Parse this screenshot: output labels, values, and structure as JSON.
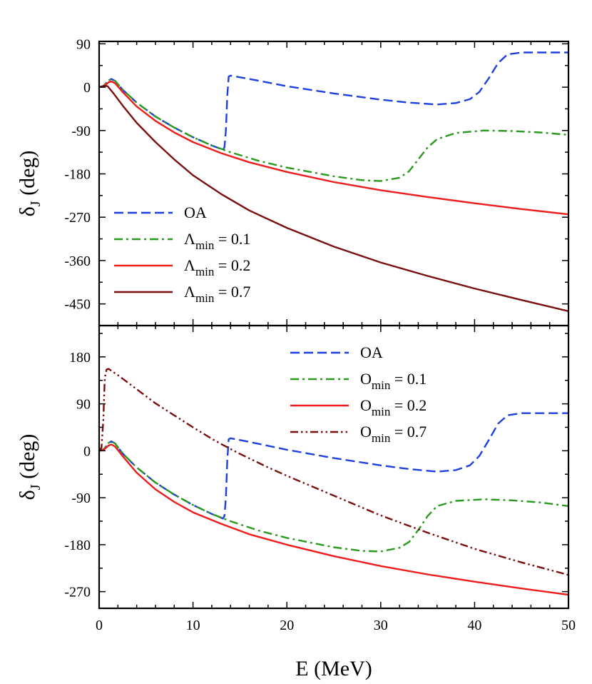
{
  "chart_data": [
    {
      "type": "line",
      "panel": "top",
      "xlabel": "E (MeV)",
      "ylabel": {
        "main": "δ",
        "sub": "J",
        "suffix": " (deg)"
      },
      "xlim": [
        0,
        50
      ],
      "ylim": [
        -495,
        95
      ],
      "yticks": [
        90,
        0,
        -90,
        -180,
        -270,
        -360,
        -450
      ],
      "legend_position": "bottom-left",
      "series": [
        {
          "name": "OA",
          "label_main": "OA",
          "label_sub": "",
          "label_value": "",
          "color": "#1f3fe0",
          "dash": "dashed",
          "points": [
            [
              0,
              0
            ],
            [
              0.5,
              3
            ],
            [
              1,
              14
            ],
            [
              1.3,
              17
            ],
            [
              1.7,
              13
            ],
            [
              2.5,
              -5
            ],
            [
              4,
              -32
            ],
            [
              6,
              -61
            ],
            [
              8,
              -84
            ],
            [
              10,
              -104
            ],
            [
              12,
              -121
            ],
            [
              13.2,
              -130
            ],
            [
              13.35,
              -125
            ],
            [
              13.5,
              -90
            ],
            [
              13.65,
              -20
            ],
            [
              13.8,
              22
            ],
            [
              14,
              24
            ],
            [
              16,
              17
            ],
            [
              20,
              2
            ],
            [
              25,
              -13
            ],
            [
              30,
              -26
            ],
            [
              33,
              -32
            ],
            [
              36,
              -36
            ],
            [
              38,
              -33
            ],
            [
              39.5,
              -25
            ],
            [
              40.5,
              -10
            ],
            [
              41.5,
              18
            ],
            [
              42.5,
              50
            ],
            [
              43.5,
              68
            ],
            [
              45,
              72
            ],
            [
              50,
              72
            ]
          ]
        },
        {
          "name": "Λmin = 0.1",
          "label_main": "Λ",
          "label_sub": "min",
          "label_value": " = 0.1",
          "color": "#2a9a1e",
          "dash": "dashdot",
          "points": [
            [
              0,
              0
            ],
            [
              0.5,
              3
            ],
            [
              1,
              14
            ],
            [
              1.3,
              17
            ],
            [
              1.7,
              13
            ],
            [
              2.5,
              -5
            ],
            [
              4,
              -32
            ],
            [
              6,
              -61
            ],
            [
              8,
              -84
            ],
            [
              10,
              -104
            ],
            [
              12,
              -121
            ],
            [
              14,
              -135
            ],
            [
              17,
              -153
            ],
            [
              20,
              -167
            ],
            [
              25,
              -185
            ],
            [
              28,
              -193
            ],
            [
              30,
              -195
            ],
            [
              32,
              -188
            ],
            [
              33,
              -175
            ],
            [
              34,
              -150
            ],
            [
              35,
              -125
            ],
            [
              36,
              -108
            ],
            [
              38,
              -95
            ],
            [
              41,
              -90
            ],
            [
              44,
              -91
            ],
            [
              47,
              -94
            ],
            [
              50,
              -99
            ]
          ]
        },
        {
          "name": "Λmin = 0.2",
          "label_main": "Λ",
          "label_sub": "min",
          "label_value": " = 0.2",
          "color": "#ee1c1c",
          "dash": "solid",
          "points": [
            [
              0,
              0
            ],
            [
              0.5,
              2
            ],
            [
              1,
              10
            ],
            [
              1.3,
              12
            ],
            [
              1.7,
              8
            ],
            [
              2.5,
              -10
            ],
            [
              4,
              -40
            ],
            [
              6,
              -70
            ],
            [
              8,
              -94
            ],
            [
              10,
              -114
            ],
            [
              13,
              -137
            ],
            [
              16,
              -156
            ],
            [
              20,
              -176
            ],
            [
              25,
              -197
            ],
            [
              30,
              -214
            ],
            [
              35,
              -228
            ],
            [
              40,
              -241
            ],
            [
              45,
              -253
            ],
            [
              50,
              -264
            ]
          ]
        },
        {
          "name": "Λmin = 0.7",
          "label_main": "Λ",
          "label_sub": "min",
          "label_value": " = 0.7",
          "color": "#7a0f0f",
          "dash": "solid",
          "points": [
            [
              0,
              0
            ],
            [
              0.5,
              3
            ],
            [
              0.9,
              2
            ],
            [
              1.5,
              -12
            ],
            [
              2.5,
              -38
            ],
            [
              4,
              -74
            ],
            [
              6,
              -114
            ],
            [
              8,
              -150
            ],
            [
              10,
              -183
            ],
            [
              13,
              -222
            ],
            [
              16,
              -256
            ],
            [
              20,
              -292
            ],
            [
              25,
              -331
            ],
            [
              30,
              -364
            ],
            [
              35,
              -392
            ],
            [
              40,
              -418
            ],
            [
              45,
              -442
            ],
            [
              50,
              -465
            ]
          ]
        }
      ]
    },
    {
      "type": "line",
      "panel": "bottom",
      "xlabel": "E (MeV)",
      "ylabel": {
        "main": "δ",
        "sub": "J",
        "suffix": " (deg)"
      },
      "xlim": [
        0,
        50
      ],
      "xticks": [
        0,
        10,
        20,
        30,
        40,
        50
      ],
      "ylim": [
        -302,
        240
      ],
      "yticks": [
        180,
        90,
        0,
        -90,
        -180,
        -270
      ],
      "legend_position": "top-right",
      "series": [
        {
          "name": "OA",
          "label_main": "OA",
          "label_sub": "",
          "label_value": "",
          "color": "#1f3fe0",
          "dash": "dashed",
          "points": [
            [
              0,
              0
            ],
            [
              0.5,
              3
            ],
            [
              1,
              15
            ],
            [
              1.3,
              18
            ],
            [
              1.7,
              14
            ],
            [
              2.5,
              -5
            ],
            [
              4,
              -32
            ],
            [
              6,
              -61
            ],
            [
              8,
              -84
            ],
            [
              10,
              -104
            ],
            [
              12,
              -121
            ],
            [
              13.2,
              -130
            ],
            [
              13.35,
              -125
            ],
            [
              13.5,
              -90
            ],
            [
              13.65,
              -20
            ],
            [
              13.8,
              22
            ],
            [
              14,
              24
            ],
            [
              16,
              17
            ],
            [
              20,
              2
            ],
            [
              25,
              -14
            ],
            [
              30,
              -28
            ],
            [
              33,
              -35
            ],
            [
              36,
              -40
            ],
            [
              38,
              -37
            ],
            [
              39.5,
              -28
            ],
            [
              40.5,
              -10
            ],
            [
              41.5,
              20
            ],
            [
              42.5,
              52
            ],
            [
              43.5,
              68
            ],
            [
              45,
              72
            ],
            [
              50,
              72
            ]
          ]
        },
        {
          "name": "Omin = 0.1",
          "label_main": "O",
          "label_sub": "min",
          "label_value": " = 0.1",
          "color": "#2a9a1e",
          "dash": "dashdot",
          "points": [
            [
              0,
              0
            ],
            [
              0.5,
              3
            ],
            [
              1,
              15
            ],
            [
              1.3,
              18
            ],
            [
              1.7,
              14
            ],
            [
              2.5,
              -5
            ],
            [
              4,
              -32
            ],
            [
              6,
              -61
            ],
            [
              8,
              -84
            ],
            [
              10,
              -104
            ],
            [
              12,
              -121
            ],
            [
              14,
              -135
            ],
            [
              17,
              -153
            ],
            [
              20,
              -167
            ],
            [
              25,
              -185
            ],
            [
              28,
              -192
            ],
            [
              30,
              -193
            ],
            [
              32,
              -186
            ],
            [
              33,
              -175
            ],
            [
              34,
              -152
            ],
            [
              35,
              -125
            ],
            [
              36,
              -106
            ],
            [
              38,
              -96
            ],
            [
              41,
              -93
            ],
            [
              44,
              -95
            ],
            [
              47,
              -99
            ],
            [
              50,
              -106
            ]
          ]
        },
        {
          "name": "Omin = 0.2",
          "label_main": "O",
          "label_sub": "min",
          "label_value": " = 0.2",
          "color": "#ee1c1c",
          "dash": "solid",
          "points": [
            [
              0,
              0
            ],
            [
              0.5,
              2
            ],
            [
              1,
              10
            ],
            [
              1.3,
              12
            ],
            [
              1.7,
              8
            ],
            [
              2.5,
              -10
            ],
            [
              4,
              -42
            ],
            [
              6,
              -74
            ],
            [
              8,
              -98
            ],
            [
              10,
              -118
            ],
            [
              13,
              -140
            ],
            [
              16,
              -160
            ],
            [
              20,
              -180
            ],
            [
              25,
              -202
            ],
            [
              30,
              -221
            ],
            [
              35,
              -237
            ],
            [
              40,
              -251
            ],
            [
              45,
              -264
            ],
            [
              50,
              -276
            ]
          ]
        },
        {
          "name": "Omin = 0.7",
          "label_main": "O",
          "label_sub": "min",
          "label_value": " = 0.7",
          "color": "#7a0f0f",
          "dash": "dashdotdot",
          "points": [
            [
              0,
              0
            ],
            [
              0.25,
              6
            ],
            [
              0.45,
              60
            ],
            [
              0.6,
              140
            ],
            [
              0.8,
              156
            ],
            [
              1,
              157
            ],
            [
              2,
              145
            ],
            [
              4,
              118
            ],
            [
              6,
              91
            ],
            [
              8,
              68
            ],
            [
              10,
              45
            ],
            [
              12,
              23
            ],
            [
              13,
              13
            ],
            [
              15,
              -6
            ],
            [
              18,
              -32
            ],
            [
              20,
              -48
            ],
            [
              25,
              -86
            ],
            [
              30,
              -124
            ],
            [
              35,
              -157
            ],
            [
              40,
              -188
            ],
            [
              45,
              -214
            ],
            [
              50,
              -238
            ]
          ]
        }
      ]
    }
  ]
}
